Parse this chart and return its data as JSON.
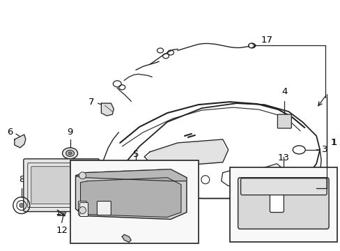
{
  "bg_color": "#ffffff",
  "fig_width": 4.89,
  "fig_height": 3.6,
  "dpi": 100,
  "line_color": "#222222",
  "text_color": "#000000",
  "font_size": 8.5,
  "line_width": 0.9
}
